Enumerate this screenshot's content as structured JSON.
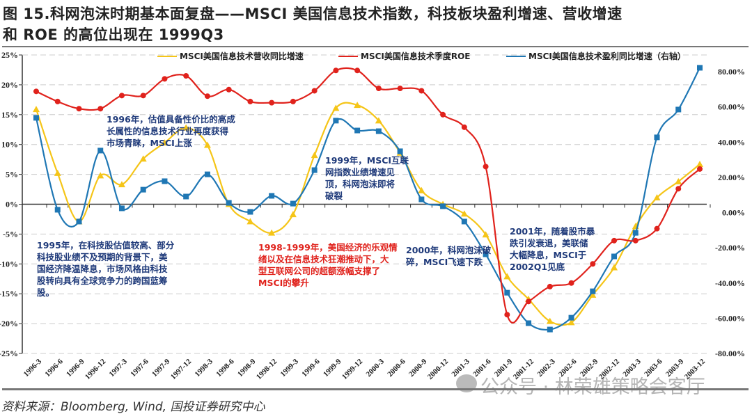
{
  "title_line1": "图 15.科网泡沫时期基本面复盘——MSCI 美国信息技术指数，科技板块盈利增速、营收增速",
  "title_line2": "和 ROE 的高位出现在 1999Q3",
  "source": "资料来源：Bloomberg, Wind, 国投证券研究中心",
  "watermark": "公众号 · 林荣雄策略会客厅",
  "colors": {
    "revenue": "#f5c518",
    "roe": "#e0221c",
    "earnings": "#1f77b4",
    "annotation_blue": "#1f3a7a",
    "annotation_red": "#e0221c"
  },
  "annotations": {
    "a1996": "1996年，估值具备性价比的高成\n长属性的信息技术行业再度获得\n市场青睐，MSCI上涨",
    "a1995": "1995年，在科技股估值较高、部分\n科技股业绩不及预期的背景下，美\n国经济降温降息，市场风格由科技\n股转向具有全球竞争力的跨国蓝筹\n股。",
    "a1998": "1998-1999年，美国经济的乐观情\n绪以及在信息技术狂潮推动下，大\n型互联网公司的超额涨幅支撑了\nMSCI的攀升",
    "a1999": "1999年，MSCI互联\n网指数业绩增速见\n顶，科网泡沫即将\n破裂",
    "a2000": "2000年，科网泡沫破\n碎，MSCI飞速下跌",
    "a2001": "2001年，随着股市暴\n跌引发衰退，美联储\n大幅降息，MSCI于\n2002Q1见底"
  },
  "chart_data": {
    "type": "line",
    "title": "",
    "categories": [
      "1996-3",
      "1996-6",
      "1996-9",
      "1996-12",
      "1997-3",
      "1997-6",
      "1997-9",
      "1997-12",
      "1998-3",
      "1998-6",
      "1998-9",
      "1998-12",
      "1999-3",
      "1999-6",
      "1999-9",
      "1999-12",
      "2000-3",
      "2000-6",
      "2000-9",
      "2000-12",
      "2001-3",
      "2001-6",
      "2001-9",
      "2001-12",
      "2002-3",
      "2002-6",
      "2002-9",
      "2002-12",
      "2003-3",
      "2003-6",
      "2003-9",
      "2003-12"
    ],
    "left_axis": {
      "min": -25,
      "max": 25,
      "step": 5,
      "format": "percent0"
    },
    "right_axis": {
      "min": -80,
      "max": 80,
      "step": 20,
      "format": "percent2"
    },
    "grid": true,
    "legend_position": "top",
    "series": [
      {
        "name": "MSCI美国信息技术营收同比增速",
        "axis": "left",
        "marker": "triangle",
        "color": "#f5c518",
        "values": [
          15.9,
          5.2,
          -2.9,
          4.8,
          3.3,
          7.6,
          10.3,
          12.8,
          9.9,
          0.0,
          -2.9,
          -4.8,
          -1.7,
          8.2,
          16.1,
          16.6,
          14.0,
          8.6,
          2.3,
          0.0,
          -1.6,
          -5.1,
          -12.1,
          -15.9,
          -19.6,
          -19.8,
          -15.2,
          -10.6,
          -3.7,
          1.1,
          3.8,
          6.7
        ]
      },
      {
        "name": "MSCI美国信息技术季度ROE",
        "axis": "left",
        "marker": "circle",
        "color": "#e0221c",
        "values": [
          18.9,
          17.2,
          16.0,
          16.0,
          18.2,
          18.2,
          21.0,
          21.5,
          18.1,
          19.2,
          17.2,
          17.0,
          17.2,
          19.0,
          22.4,
          22.4,
          19.4,
          19.4,
          19.0,
          15.0,
          12.9,
          6.3,
          -18.5,
          -16.3,
          -13.8,
          -13.2,
          -10.0,
          -6.1,
          -6.1,
          -4.1,
          2.6,
          5.9
        ]
      },
      {
        "name": "MSCI美国信息技术盈利同比增速（右轴）",
        "axis": "right",
        "marker": "square",
        "color": "#1f77b4",
        "values": [
          53.8,
          1.6,
          -5.1,
          35.2,
          2.4,
          13.0,
          17.8,
          9.1,
          21.7,
          5.5,
          0.4,
          9.5,
          5.1,
          24.1,
          52.2,
          46.6,
          46.2,
          34.8,
          7.5,
          3.6,
          -5.1,
          -23.7,
          -45.5,
          -62.8,
          -66.4,
          -59.7,
          -44.7,
          -24.9,
          -11.5,
          42.7,
          58.5,
          82.2
        ]
      }
    ]
  }
}
